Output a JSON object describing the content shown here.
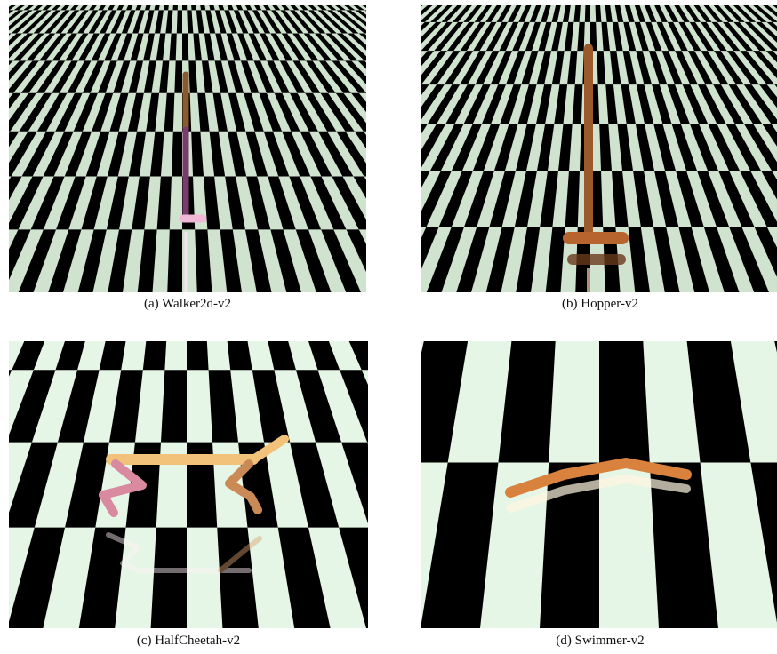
{
  "figure": {
    "panels": [
      {
        "caption": "(a)  Walker2d-v2",
        "subject": "walker2d-robot",
        "floor": "checkerboard-floor"
      },
      {
        "caption": "(b)  Hopper-v2",
        "subject": "hopper-robot",
        "floor": "checkerboard-floor"
      },
      {
        "caption": "(c)  HalfCheetah-v2",
        "subject": "halfcheetah-robot",
        "floor": "checkerboard-floor"
      },
      {
        "caption": "(d)  Swimmer-v2",
        "subject": "swimmer-robot",
        "floor": "checkerboard-floor"
      }
    ],
    "colors": {
      "floor_light": "#cfe3cf",
      "floor_light_near": "#e6f6e6",
      "floor_dark": "#000000",
      "body_brown": "#9a5a2c",
      "body_orange": "#d9823e",
      "body_tan": "#f2c27a",
      "body_pink": "#d98aa0",
      "body_purple": "#7a3c6e"
    }
  }
}
